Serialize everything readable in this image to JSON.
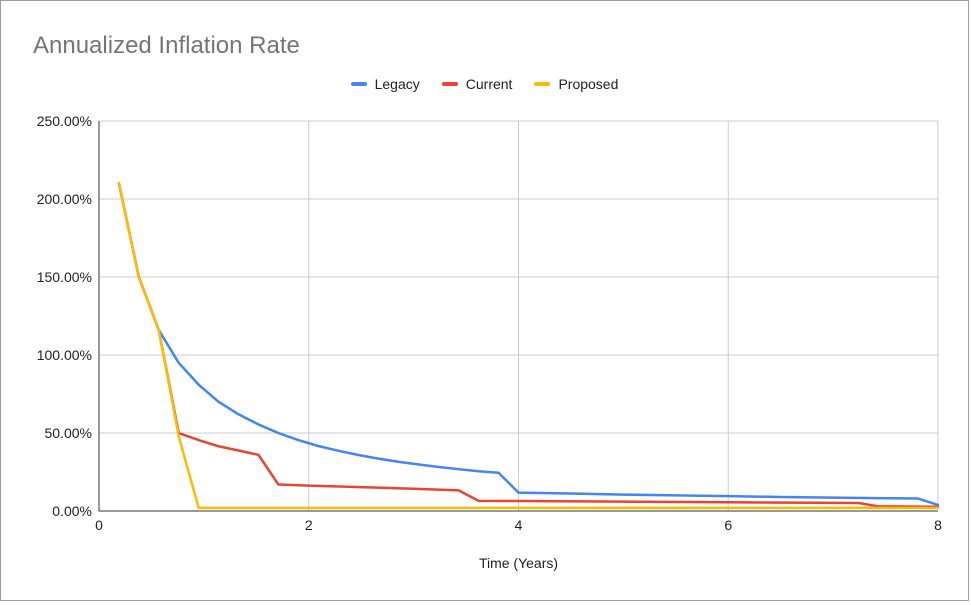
{
  "chart_data": {
    "type": "line",
    "title": "Annualized Inflation Rate",
    "xlabel": "Time (Years)",
    "ylabel": "",
    "xlim": [
      0,
      8
    ],
    "ylim": [
      0,
      250
    ],
    "x_ticks": [
      0,
      2,
      4,
      6,
      8
    ],
    "x_tick_labels": [
      "0",
      "2",
      "4",
      "6",
      "8"
    ],
    "y_ticks": [
      0,
      50,
      100,
      150,
      200,
      250
    ],
    "y_tick_labels": [
      "0.00%",
      "50.00%",
      "100.00%",
      "150.00%",
      "200.00%",
      "250.00%"
    ],
    "grid": true,
    "legend_position": "top",
    "series": [
      {
        "name": "Legacy",
        "color": "#4285f4",
        "points": [
          [
            0.19,
            210
          ],
          [
            0.38,
            150
          ],
          [
            0.57,
            116
          ],
          [
            0.76,
            95
          ],
          [
            0.95,
            81
          ],
          [
            1.14,
            70
          ],
          [
            1.33,
            62
          ],
          [
            1.52,
            55.5
          ],
          [
            1.71,
            50
          ],
          [
            1.9,
            45.5
          ],
          [
            2.1,
            41.5
          ],
          [
            2.29,
            38.5
          ],
          [
            2.48,
            35.8
          ],
          [
            2.67,
            33.5
          ],
          [
            2.86,
            31.5
          ],
          [
            3.05,
            29.8
          ],
          [
            3.24,
            28.2
          ],
          [
            3.43,
            26.8
          ],
          [
            3.62,
            25.5
          ],
          [
            3.81,
            24.5
          ],
          [
            4.0,
            11.8
          ],
          [
            4.5,
            11.2
          ],
          [
            5.0,
            10.5
          ],
          [
            5.5,
            10.0
          ],
          [
            6.0,
            9.5
          ],
          [
            6.5,
            9.0
          ],
          [
            7.0,
            8.6
          ],
          [
            7.5,
            8.2
          ],
          [
            7.81,
            8.0
          ],
          [
            8.0,
            3.9
          ]
        ]
      },
      {
        "name": "Current",
        "color": "#ea4335",
        "points": [
          [
            0.19,
            210
          ],
          [
            0.38,
            150
          ],
          [
            0.57,
            116
          ],
          [
            0.76,
            50
          ],
          [
            0.95,
            45.5
          ],
          [
            1.14,
            41.5
          ],
          [
            1.33,
            38.8
          ],
          [
            1.52,
            36.0
          ],
          [
            1.71,
            17.0
          ],
          [
            2.0,
            16.3
          ],
          [
            2.5,
            15.3
          ],
          [
            3.0,
            14.3
          ],
          [
            3.43,
            13.2
          ],
          [
            3.62,
            6.5
          ],
          [
            4.0,
            6.4
          ],
          [
            5.0,
            6.0
          ],
          [
            6.0,
            5.6
          ],
          [
            7.0,
            5.2
          ],
          [
            7.24,
            5.1
          ],
          [
            7.43,
            3.0
          ],
          [
            8.0,
            2.7
          ]
        ]
      },
      {
        "name": "Proposed",
        "color": "#fbbc04",
        "points": [
          [
            0.19,
            210
          ],
          [
            0.38,
            150
          ],
          [
            0.57,
            116
          ],
          [
            0.76,
            48
          ],
          [
            0.95,
            2.0
          ],
          [
            2.0,
            2.0
          ],
          [
            3.0,
            2.0
          ],
          [
            4.0,
            2.0
          ],
          [
            5.0,
            2.0
          ],
          [
            6.0,
            2.0
          ],
          [
            7.0,
            2.0
          ],
          [
            8.0,
            2.0
          ]
        ]
      }
    ]
  }
}
